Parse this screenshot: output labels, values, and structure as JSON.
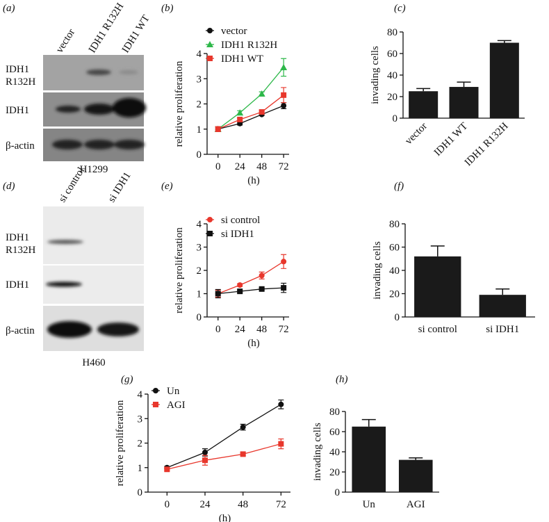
{
  "chart_data": [
    {
      "type": "line",
      "panel_label": "(b)",
      "xlabel": "(h)",
      "ylabel": "relative proliferation",
      "x": [
        0,
        24,
        48,
        72
      ],
      "xlim": [
        -12,
        78
      ],
      "xticks": [
        0,
        24,
        48,
        72
      ],
      "ylim": [
        0,
        4
      ],
      "yticks": [
        0,
        1,
        2,
        3,
        4
      ],
      "legend": "upper left",
      "series": [
        {
          "name": "vector",
          "color": "#111111",
          "marker": "circle",
          "values": [
            1,
            1.22,
            1.58,
            1.93
          ],
          "errors": [
            0.08,
            0.06,
            0.04,
            0.12
          ]
        },
        {
          "name": "IDH1 R132H",
          "color": "#2eb84a",
          "marker": "triangle",
          "values": [
            1,
            1.65,
            2.4,
            3.45
          ],
          "errors": [
            0.1,
            0.08,
            0.08,
            0.35
          ]
        },
        {
          "name": "IDH1 WT",
          "color": "#e8372c",
          "marker": "square",
          "values": [
            1,
            1.38,
            1.68,
            2.35
          ],
          "errors": [
            0.1,
            0.05,
            0.06,
            0.3
          ]
        }
      ]
    },
    {
      "type": "bar",
      "panel_label": "(c)",
      "ylabel": "invading cells",
      "categories": [
        "vector",
        "IDH1 WT",
        "IDH1 R132H"
      ],
      "values": [
        25,
        29,
        70
      ],
      "errors": [
        2.5,
        4.5,
        2
      ],
      "color": "#1a1a1a",
      "ylim": [
        0,
        80
      ],
      "yticks": [
        0,
        20,
        40,
        60,
        80
      ],
      "xtick_rotation": 45
    },
    {
      "type": "line",
      "panel_label": "(e)",
      "xlabel": "(h)",
      "ylabel": "relative proliferation",
      "x": [
        0,
        24,
        48,
        72
      ],
      "xlim": [
        -12,
        78
      ],
      "xticks": [
        0,
        24,
        48,
        72
      ],
      "ylim": [
        0,
        4
      ],
      "yticks": [
        0,
        1,
        2,
        3,
        4
      ],
      "legend": "upper left",
      "series": [
        {
          "name": "si control",
          "color": "#e8372c",
          "marker": "circle",
          "values": [
            1,
            1.37,
            1.78,
            2.38
          ],
          "errors": [
            0.15,
            0.06,
            0.15,
            0.3
          ]
        },
        {
          "name": "si IDH1",
          "color": "#111111",
          "marker": "square",
          "values": [
            1,
            1.1,
            1.2,
            1.25
          ],
          "errors": [
            0.18,
            0.05,
            0.04,
            0.2
          ]
        }
      ]
    },
    {
      "type": "bar",
      "panel_label": "(f)",
      "ylabel": "invading cells",
      "categories": [
        "si control",
        "si IDH1"
      ],
      "values": [
        52,
        19
      ],
      "errors": [
        9,
        5
      ],
      "color": "#1a1a1a",
      "ylim": [
        0,
        80
      ],
      "yticks": [
        0,
        20,
        40,
        60,
        80
      ],
      "xtick_rotation": 0
    },
    {
      "type": "line",
      "panel_label": "(g)",
      "xlabel": "(h)",
      "ylabel": "relative proliferation",
      "x": [
        0,
        24,
        48,
        72
      ],
      "xlim": [
        -12,
        78
      ],
      "xticks": [
        0,
        24,
        48,
        72
      ],
      "ylim": [
        0,
        4
      ],
      "yticks": [
        0,
        1,
        2,
        3,
        4
      ],
      "legend": "upper left",
      "series": [
        {
          "name": "Un",
          "color": "#111111",
          "marker": "circle",
          "values": [
            1,
            1.62,
            2.65,
            3.58
          ],
          "errors": [
            0.05,
            0.15,
            0.12,
            0.18
          ]
        },
        {
          "name": "AGI",
          "color": "#e8372c",
          "marker": "square",
          "values": [
            0.93,
            1.3,
            1.55,
            1.97
          ],
          "errors": [
            0.05,
            0.2,
            0.05,
            0.2
          ]
        }
      ]
    },
    {
      "type": "bar",
      "panel_label": "(h)",
      "ylabel": "invading cells",
      "categories": [
        "Un",
        "AGI"
      ],
      "values": [
        65,
        32
      ],
      "errors": [
        7,
        2
      ],
      "color": "#1a1a1a",
      "ylim": [
        0,
        80
      ],
      "yticks": [
        0,
        20,
        40,
        60,
        80
      ],
      "xtick_rotation": 0
    }
  ],
  "blots": [
    {
      "panel_label": "(a)",
      "lanes": [
        "vector",
        "IDH1 R132H",
        "IDH1 WT"
      ],
      "rows": [
        [
          "IDH1",
          "R132H"
        ],
        [
          "IDH1"
        ],
        [
          "β-actin"
        ]
      ],
      "cell_line": "H1299"
    },
    {
      "panel_label": "(d)",
      "lanes": [
        "si control",
        "si IDH1"
      ],
      "rows": [
        [
          "IDH1",
          "R132H"
        ],
        [
          "IDH1"
        ],
        [
          "β-actin"
        ]
      ],
      "cell_line": "H460"
    }
  ]
}
